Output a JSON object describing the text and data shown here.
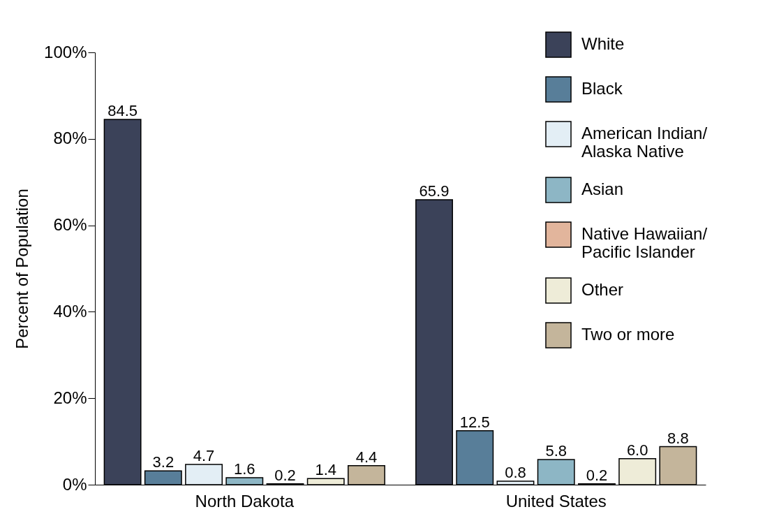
{
  "chart_data": {
    "type": "bar",
    "ylabel": "Percent of Population",
    "categories": [
      "North Dakota",
      "United States"
    ],
    "series": [
      {
        "name": "White",
        "color": "#3b4259",
        "values": [
          84.5,
          65.9
        ],
        "value_labels": [
          "84.5",
          "65.9"
        ]
      },
      {
        "name": "Black",
        "color": "#587e99",
        "values": [
          3.2,
          12.5
        ],
        "value_labels": [
          "3.2",
          "12.5"
        ]
      },
      {
        "name": "American Indian/Alaska Native",
        "color": "#e3eef5",
        "values": [
          4.7,
          0.8
        ],
        "value_labels": [
          "4.7",
          "0.8"
        ]
      },
      {
        "name": "Asian",
        "color": "#8db6c5",
        "values": [
          1.6,
          5.8
        ],
        "value_labels": [
          "1.6",
          "5.8"
        ]
      },
      {
        "name": "Native Hawaiian/Pacific Islander",
        "color": "#e2b59c",
        "values": [
          0.2,
          0.2
        ],
        "value_labels": [
          "0.2",
          "0.2"
        ]
      },
      {
        "name": "Other",
        "color": "#eeecd8",
        "values": [
          1.4,
          6.0
        ],
        "value_labels": [
          "1.4",
          "6.0"
        ]
      },
      {
        "name": "Two or more",
        "color": "#c4b59b",
        "values": [
          4.4,
          8.8
        ],
        "value_labels": [
          "4.4",
          "8.8"
        ]
      }
    ],
    "ylim": [
      0,
      100
    ],
    "yticks": [
      {
        "value": 0,
        "label": "0%"
      },
      {
        "value": 20,
        "label": "20%"
      },
      {
        "value": 40,
        "label": "40%"
      },
      {
        "value": 60,
        "label": "60%"
      },
      {
        "value": 80,
        "label": "80%"
      },
      {
        "value": 100,
        "label": "100%"
      }
    ],
    "grid": false,
    "legend": "top right"
  }
}
